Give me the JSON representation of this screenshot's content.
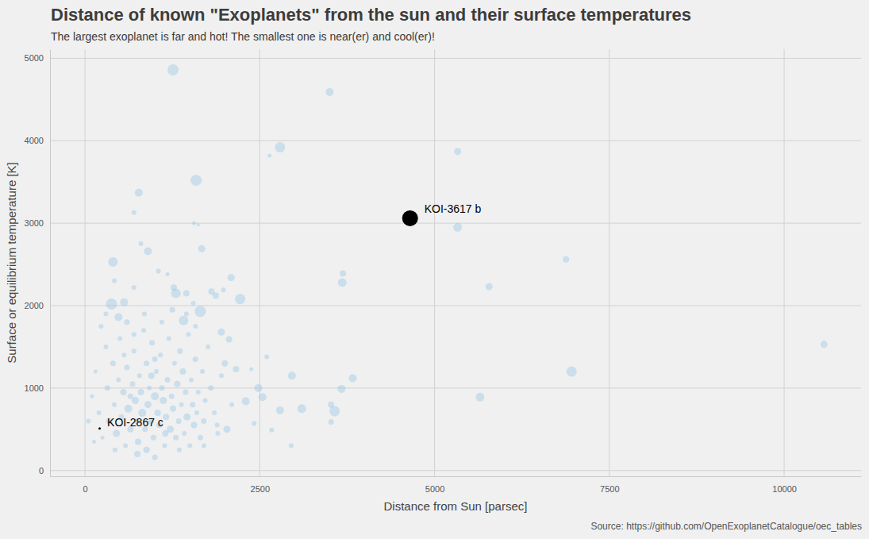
{
  "chart_data": {
    "type": "scatter",
    "title": "Distance of known \"Exoplanets\" from the sun and their surface temperatures",
    "subtitle": "The largest exoplanet is far and hot! The smallest one is near(er) and cool(er)!",
    "x_label": "Distance from Sun [parsec]",
    "y_label": "Surface or equilibrium temperature [K]",
    "caption": "Source: https://github.com/OpenExoplanetCatalogue/oec_tables",
    "xlim": [
      -500,
      11100
    ],
    "ylim": [
      -70,
      5110
    ],
    "xticks": [
      0,
      2500,
      5000,
      7500,
      10000
    ],
    "yticks": [
      0,
      1000,
      2000,
      3000,
      4000,
      5000
    ],
    "grid": true,
    "series": [
      {
        "color": "#9cc7e6",
        "marker": "circle",
        "x": [
          1260,
          3500,
          2790,
          2640,
          5330,
          770,
          1590,
          700,
          1560,
          1620,
          5330,
          800,
          900,
          400,
          1670,
          6880,
          3690,
          3680,
          5780,
          2090,
          2220,
          1300,
          1650,
          10570,
          6960,
          5650,
          3830,
          2960,
          3670,
          2480,
          2540,
          3100,
          2790,
          3570,
          3520,
          2670,
          2950,
          3520,
          2420,
          2300,
          1980,
          1950,
          2060,
          1410,
          1550,
          420,
          560,
          380,
          1050,
          1180,
          480,
          1270,
          1450,
          700,
          2600,
          2380,
          2160,
          1810,
          1870,
          2000,
          100,
          150,
          200,
          250,
          300,
          320,
          350,
          400,
          420,
          450,
          480,
          500,
          520,
          550,
          580,
          600,
          620,
          650,
          680,
          700,
          720,
          740,
          760,
          780,
          800,
          820,
          840,
          860,
          880,
          900,
          920,
          940,
          960,
          980,
          1000,
          1020,
          1040,
          1060,
          1080,
          1100,
          1120,
          1140,
          1160,
          1180,
          1200,
          1220,
          1240,
          1260,
          1280,
          1300,
          1320,
          1340,
          1360,
          1380,
          1400,
          1420,
          1440,
          1460,
          1480,
          1500,
          1520,
          1540,
          1560,
          1580,
          1600,
          1620,
          1650,
          1680,
          1700,
          1720,
          1760,
          1800,
          1850,
          1900,
          1950,
          2030,
          2100,
          1890,
          750,
          1000,
          850,
          600,
          1100,
          300,
          50,
          130,
          950,
          650,
          1150,
          560,
          1350,
          1700,
          880,
          430,
          1250,
          1450,
          700,
          230,
          1580,
          1000
        ],
        "values": [
          4860,
          4590,
          3920,
          3820,
          3870,
          3370,
          3520,
          3130,
          3000,
          2980,
          2950,
          2750,
          2660,
          2530,
          2690,
          2560,
          2390,
          2280,
          2230,
          2340,
          2080,
          2150,
          1930,
          1530,
          1200,
          890,
          1120,
          1150,
          990,
          1000,
          890,
          750,
          730,
          720,
          800,
          490,
          300,
          590,
          570,
          840,
          2190,
          1680,
          1590,
          1820,
          2030,
          2300,
          2040,
          2020,
          2420,
          2380,
          1860,
          2220,
          2150,
          2220,
          1380,
          1230,
          1230,
          2170,
          2120,
          1300,
          900,
          1200,
          700,
          400,
          1500,
          1000,
          600,
          1300,
          800,
          450,
          1100,
          1600,
          650,
          950,
          300,
          1250,
          750,
          500,
          1050,
          1450,
          850,
          600,
          350,
          1150,
          950,
          700,
          1700,
          500,
          1300,
          800,
          1000,
          600,
          1550,
          400,
          900,
          1200,
          700,
          550,
          1400,
          1000,
          850,
          300,
          650,
          1100,
          1600,
          500,
          900,
          750,
          1300,
          400,
          1050,
          600,
          1450,
          800,
          1200,
          450,
          950,
          650,
          1650,
          300,
          1100,
          800,
          550,
          1350,
          700,
          950,
          400,
          1200,
          600,
          850,
          1500,
          1000,
          700,
          450,
          1150,
          500,
          800,
          550,
          200,
          160,
          1900,
          1800,
          1800,
          1900,
          600,
          350,
          1150,
          900,
          450,
          1400,
          250,
          300,
          250,
          250,
          1950,
          1900,
          1650,
          1750,
          1750,
          1350
        ],
        "size": [
          1.4,
          1.0,
          1.3,
          0.5,
          0.9,
          1.0,
          1.4,
          0.6,
          0.5,
          0.4,
          1.1,
          0.6,
          1.0,
          1.2,
          0.9,
          0.8,
          0.8,
          1.1,
          0.9,
          0.9,
          1.3,
          1.2,
          1.4,
          0.9,
          1.3,
          1.1,
          1.0,
          1.0,
          1.0,
          1.0,
          1.0,
          1.1,
          1.0,
          1.3,
          0.8,
          0.6,
          0.6,
          0.7,
          0.6,
          1.0,
          0.6,
          0.9,
          0.8,
          1.2,
          0.6,
          0.6,
          1.0,
          1.4,
          0.6,
          0.5,
          1.0,
          0.8,
          0.8,
          0.6,
          0.6,
          0.5,
          0.8,
          0.8,
          0.8,
          0.8,
          0.5,
          0.5,
          0.6,
          0.5,
          0.6,
          0.7,
          0.8,
          0.7,
          0.6,
          0.9,
          0.6,
          0.6,
          0.7,
          0.8,
          0.6,
          0.7,
          1.0,
          0.8,
          0.7,
          0.6,
          0.9,
          0.7,
          0.8,
          0.6,
          0.8,
          1.0,
          0.6,
          0.7,
          0.7,
          0.9,
          0.6,
          0.8,
          0.7,
          0.7,
          1.0,
          0.6,
          0.8,
          0.7,
          0.6,
          0.7,
          0.9,
          0.6,
          0.8,
          0.7,
          0.6,
          0.9,
          0.7,
          0.8,
          0.6,
          0.7,
          0.8,
          0.7,
          0.7,
          0.6,
          0.8,
          0.6,
          0.7,
          0.9,
          0.6,
          0.6,
          0.6,
          0.7,
          0.8,
          0.7,
          0.6,
          0.6,
          0.7,
          0.6,
          0.7,
          0.6,
          0.6,
          0.7,
          0.6,
          0.6,
          0.6,
          0.9,
          0.6,
          0.6,
          0.8,
          0.7,
          0.6,
          0.7,
          0.6,
          0.6,
          0.6,
          0.5,
          0.8,
          0.7,
          0.8,
          0.6,
          0.6,
          0.6,
          0.8,
          0.6,
          0.7,
          0.6,
          0.6,
          0.6,
          0.6,
          0.7
        ]
      },
      {
        "color": "#000000",
        "marker": "circle",
        "x": [
          4650,
          210
        ],
        "values": [
          3060,
          510
        ],
        "size": [
          2.0,
          0.3
        ]
      }
    ],
    "annotations": [
      {
        "text": "KOI-3617 b",
        "x": 4650,
        "y": 3060
      },
      {
        "text": "KOI-2867 c",
        "x": 210,
        "y": 510
      }
    ]
  }
}
